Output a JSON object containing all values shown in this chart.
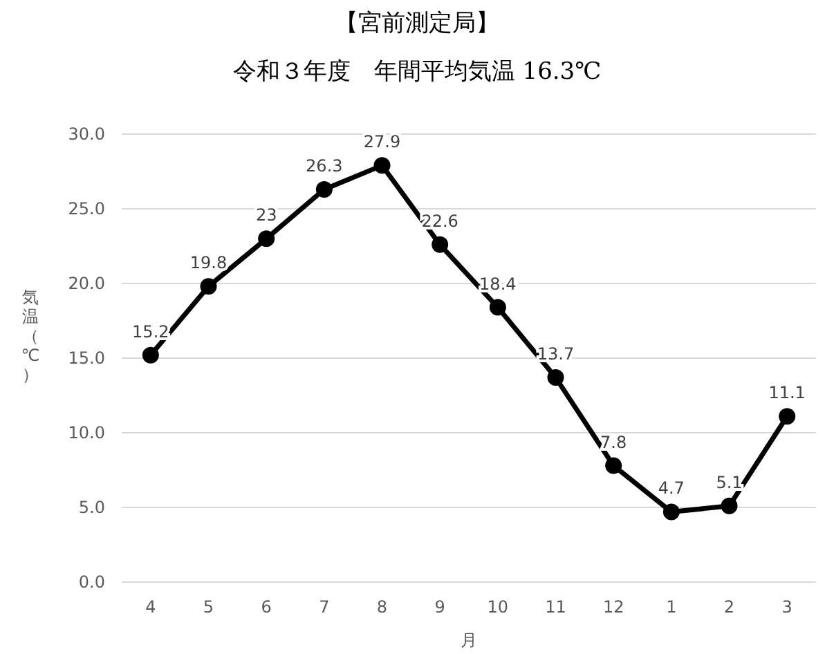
{
  "chart_data": {
    "type": "line",
    "title": "【宮前測定局】",
    "subtitle": "令和３年度　年間平均気温 16.3℃",
    "xlabel": "月",
    "ylabel": "気温（℃）",
    "categories": [
      "4",
      "5",
      "6",
      "7",
      "8",
      "9",
      "10",
      "11",
      "12",
      "1",
      "2",
      "3"
    ],
    "series": [
      {
        "color": "#000000",
        "values": [
          15.2,
          19.8,
          23,
          26.3,
          27.9,
          22.6,
          18.4,
          13.7,
          7.8,
          4.7,
          5.1,
          11.1
        ]
      }
    ],
    "ylim": [
      0,
      30
    ],
    "yticks": [
      {
        "value": 0,
        "label": "0.0"
      },
      {
        "value": 5,
        "label": "5.0"
      },
      {
        "value": 10,
        "label": "10.0"
      },
      {
        "value": 15,
        "label": "15.0"
      },
      {
        "value": 20,
        "label": "20.0"
      },
      {
        "value": 25,
        "label": "25.0"
      },
      {
        "value": 30,
        "label": "30.0"
      }
    ],
    "grid": "y",
    "marker": "circle",
    "line_style": "solid",
    "data_labels": true
  }
}
